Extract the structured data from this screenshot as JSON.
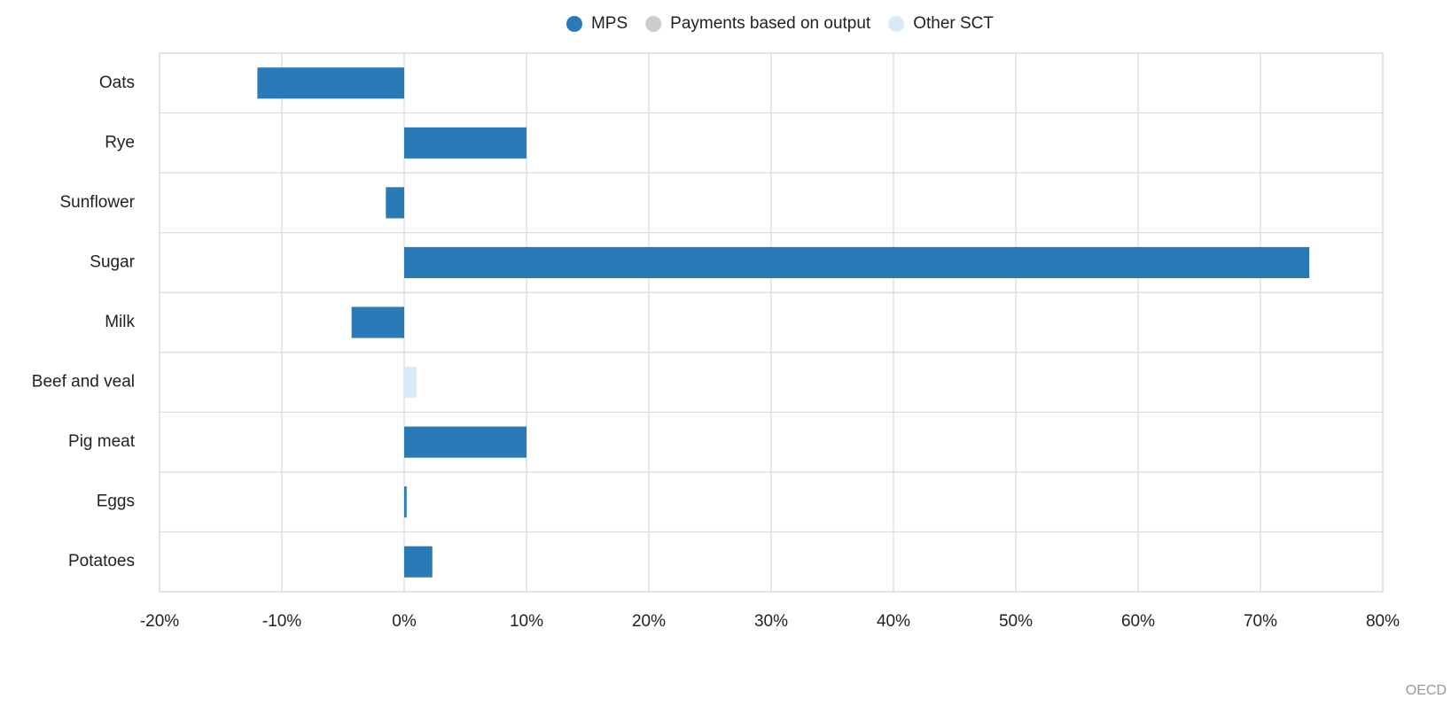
{
  "chart_data": {
    "type": "bar",
    "orientation": "horizontal",
    "stacked": true,
    "categories": [
      "Oats",
      "Rye",
      "Sunflower",
      "Sugar",
      "Milk",
      "Beef and veal",
      "Pig meat",
      "Eggs",
      "Potatoes"
    ],
    "series": [
      {
        "name": "MPS",
        "color": "#2a7ab8",
        "values": [
          -12,
          10,
          -1.5,
          74,
          -4.3,
          0,
          10,
          0.2,
          2.3
        ]
      },
      {
        "name": "Payments based on output",
        "color": "#cccccc",
        "values": [
          0,
          0,
          0,
          0,
          0,
          0,
          0,
          0,
          0
        ]
      },
      {
        "name": "Other SCT",
        "color": "#d8eaf8",
        "values": [
          0,
          0,
          0,
          0,
          0,
          1,
          0,
          0,
          0
        ]
      }
    ],
    "xlim": [
      -20,
      80
    ],
    "xticks": [
      {
        "value": -20,
        "label": "-20%"
      },
      {
        "value": -10,
        "label": "-10%"
      },
      {
        "value": 0,
        "label": "0%"
      },
      {
        "value": 10,
        "label": "10%"
      },
      {
        "value": 20,
        "label": "20%"
      },
      {
        "value": 30,
        "label": "30%"
      },
      {
        "value": 40,
        "label": "40%"
      },
      {
        "value": 50,
        "label": "50%"
      },
      {
        "value": 60,
        "label": "60%"
      },
      {
        "value": 70,
        "label": "70%"
      },
      {
        "value": 80,
        "label": "80%"
      }
    ],
    "grid": true,
    "legend": "top",
    "source": "OECD"
  }
}
